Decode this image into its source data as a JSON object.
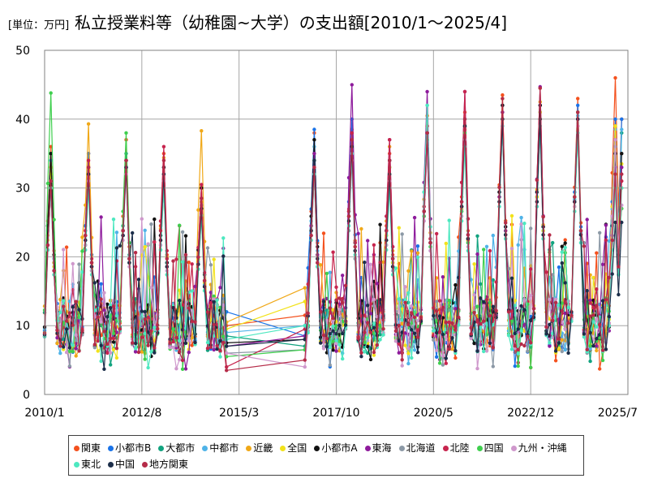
{
  "header": {
    "unit_label": "[単位：万円]",
    "title": "私立授業料等（幼稚園~大学）の支出額[2010/1～2025/4]"
  },
  "colors": {
    "gridline": "#a6a6a6",
    "plot_border": "#808080"
  },
  "chart_data": {
    "type": "line",
    "title": "私立授業料等（幼稚園~大学）の支出額[2010/1～2025/4]",
    "unit": "[単位：万円]",
    "xlabel": "",
    "ylabel": "",
    "ylim": [
      0,
      50
    ],
    "yticks": [
      0,
      10,
      20,
      30,
      40,
      50
    ],
    "grid": true,
    "legend_position": "bottom",
    "x_domain_months": [
      0,
      186
    ],
    "x_tick_labels": [
      {
        "label": "2010/1",
        "month_index": 0
      },
      {
        "label": "2012/8",
        "month_index": 31
      },
      {
        "label": "2015/3",
        "month_index": 62
      },
      {
        "label": "2017/10",
        "month_index": 93
      },
      {
        "label": "2020/5",
        "month_index": 124
      },
      {
        "label": "2022/12",
        "month_index": 155
      },
      {
        "label": "2025/7",
        "month_index": 186
      }
    ],
    "gap_months": {
      "last_before_gap": 58,
      "first_after_gap": 83
    },
    "series": [
      {
        "name": "関東",
        "color": "#f4511e",
        "peaks": [
          {
            "m": 2,
            "v": 36.0
          },
          {
            "m": 14,
            "v": 35.0
          },
          {
            "m": 26,
            "v": 37.0
          },
          {
            "m": 38,
            "v": 35.0
          },
          {
            "m": 50,
            "v": 30.0
          },
          {
            "m": 86,
            "v": 38.0
          },
          {
            "m": 98,
            "v": 38.5
          },
          {
            "m": 110,
            "v": 35.0
          },
          {
            "m": 122,
            "v": 39.0
          },
          {
            "m": 134,
            "v": 41.0
          },
          {
            "m": 146,
            "v": 43.5
          },
          {
            "m": 158,
            "v": 44.5
          },
          {
            "m": 170,
            "v": 43.0
          },
          {
            "m": 182,
            "v": 46.0
          }
        ],
        "after_gap_start": 11.5,
        "pre_gap_end": 10.0,
        "final": 40.0
      },
      {
        "name": "小都市B",
        "color": "#1a73e8",
        "peaks": [
          {
            "m": 2,
            "v": 33.0
          },
          {
            "m": 14,
            "v": 35.0
          },
          {
            "m": 26,
            "v": 34.0
          },
          {
            "m": 38,
            "v": 33.0
          },
          {
            "m": 50,
            "v": 28.0
          },
          {
            "m": 86,
            "v": 38.5
          },
          {
            "m": 98,
            "v": 40.0
          },
          {
            "m": 110,
            "v": 34.0
          },
          {
            "m": 122,
            "v": 38.0
          },
          {
            "m": 134,
            "v": 40.0
          },
          {
            "m": 146,
            "v": 42.0
          },
          {
            "m": 158,
            "v": 42.0
          },
          {
            "m": 170,
            "v": 42.0
          },
          {
            "m": 182,
            "v": 40.0
          }
        ],
        "after_gap_start": 8.5,
        "pre_gap_end": 12.0,
        "final": 40.0
      },
      {
        "name": "大都市",
        "color": "#12a37f",
        "peaks": [
          {
            "m": 2,
            "v": 35.0
          },
          {
            "m": 14,
            "v": 32.0
          },
          {
            "m": 26,
            "v": 35.0
          },
          {
            "m": 38,
            "v": 32.0
          },
          {
            "m": 50,
            "v": 27.0
          },
          {
            "m": 86,
            "v": 35.0
          },
          {
            "m": 98,
            "v": 37.0
          },
          {
            "m": 110,
            "v": 33.0
          },
          {
            "m": 122,
            "v": 37.0
          },
          {
            "m": 134,
            "v": 39.0
          },
          {
            "m": 146,
            "v": 41.0
          },
          {
            "m": 158,
            "v": 41.0
          },
          {
            "m": 170,
            "v": 41.0
          },
          {
            "m": 182,
            "v": 39.0
          }
        ],
        "after_gap_start": 7.0,
        "pre_gap_end": 8.5,
        "final": 38.0
      },
      {
        "name": "中都市",
        "color": "#4fb3e8",
        "peaks": [
          {
            "m": 2,
            "v": 34.0
          },
          {
            "m": 14,
            "v": 33.0
          },
          {
            "m": 26,
            "v": 34.0
          },
          {
            "m": 38,
            "v": 33.0
          },
          {
            "m": 50,
            "v": 27.5
          },
          {
            "m": 86,
            "v": 36.0
          },
          {
            "m": 98,
            "v": 37.0
          },
          {
            "m": 110,
            "v": 33.0
          },
          {
            "m": 122,
            "v": 42.0
          },
          {
            "m": 134,
            "v": 39.0
          },
          {
            "m": 146,
            "v": 40.0
          },
          {
            "m": 158,
            "v": 41.0
          },
          {
            "m": 170,
            "v": 40.5
          },
          {
            "m": 182,
            "v": 38.5
          }
        ],
        "after_gap_start": 10.0,
        "pre_gap_end": 9.0,
        "final": 38.5
      },
      {
        "name": "近畿",
        "color": "#f0a818",
        "peaks": [
          {
            "m": 2,
            "v": 33.0
          },
          {
            "m": 14,
            "v": 39.3
          },
          {
            "m": 26,
            "v": 34.0
          },
          {
            "m": 38,
            "v": 34.4
          },
          {
            "m": 50,
            "v": 38.3
          },
          {
            "m": 86,
            "v": 33.0
          },
          {
            "m": 98,
            "v": 37.0
          },
          {
            "m": 110,
            "v": 36.0
          },
          {
            "m": 122,
            "v": 40.5
          },
          {
            "m": 134,
            "v": 38.5
          },
          {
            "m": 146,
            "v": 43.0
          },
          {
            "m": 158,
            "v": 42.5
          },
          {
            "m": 170,
            "v": 39.0
          },
          {
            "m": 182,
            "v": 39.0
          }
        ],
        "after_gap_start": 15.5,
        "pre_gap_end": 10.5,
        "final": 30.0
      },
      {
        "name": "全国",
        "color": "#f2e21b",
        "peaks": [
          {
            "m": 2,
            "v": 32.0
          },
          {
            "m": 14,
            "v": 33.0
          },
          {
            "m": 26,
            "v": 33.0
          },
          {
            "m": 38,
            "v": 32.0
          },
          {
            "m": 50,
            "v": 28.0
          },
          {
            "m": 86,
            "v": 35.0
          },
          {
            "m": 98,
            "v": 37.0
          },
          {
            "m": 110,
            "v": 33.0
          },
          {
            "m": 122,
            "v": 38.0
          },
          {
            "m": 134,
            "v": 39.0
          },
          {
            "m": 146,
            "v": 41.0
          },
          {
            "m": 158,
            "v": 41.0
          },
          {
            "m": 170,
            "v": 41.0
          },
          {
            "m": 182,
            "v": 39.0
          }
        ],
        "after_gap_start": 13.5,
        "pre_gap_end": 9.5,
        "final": 33.5
      },
      {
        "name": "小都市A",
        "color": "#111111",
        "peaks": [
          {
            "m": 2,
            "v": 35.0
          },
          {
            "m": 14,
            "v": 32.0
          },
          {
            "m": 26,
            "v": 34.0
          },
          {
            "m": 38,
            "v": 33.0
          },
          {
            "m": 50,
            "v": 30.0
          },
          {
            "m": 86,
            "v": 37.0
          },
          {
            "m": 98,
            "v": 38.0
          },
          {
            "m": 110,
            "v": 34.0
          },
          {
            "m": 122,
            "v": 38.0
          },
          {
            "m": 134,
            "v": 39.0
          },
          {
            "m": 146,
            "v": 42.0
          },
          {
            "m": 158,
            "v": 42.0
          },
          {
            "m": 170,
            "v": 40.0
          },
          {
            "m": 182,
            "v": 35.0
          }
        ],
        "after_gap_start": 8.0,
        "pre_gap_end": 7.5,
        "final": 35.0
      },
      {
        "name": "東海",
        "color": "#8e1b9c",
        "peaks": [
          {
            "m": 2,
            "v": 31.0
          },
          {
            "m": 14,
            "v": 33.0
          },
          {
            "m": 26,
            "v": 33.0
          },
          {
            "m": 38,
            "v": 32.0
          },
          {
            "m": 50,
            "v": 28.5
          },
          {
            "m": 86,
            "v": 35.0
          },
          {
            "m": 98,
            "v": 45.0
          },
          {
            "m": 110,
            "v": 37.0
          },
          {
            "m": 122,
            "v": 44.0
          },
          {
            "m": 134,
            "v": 44.0
          },
          {
            "m": 146,
            "v": 41.0
          },
          {
            "m": 158,
            "v": 44.7
          },
          {
            "m": 170,
            "v": 41.0
          },
          {
            "m": 182,
            "v": 33.0
          }
        ],
        "after_gap_start": 8.5,
        "pre_gap_end": 7.0,
        "final": 33.0
      },
      {
        "name": "北海道",
        "color": "#8c99a6",
        "peaks": [
          {
            "m": 2,
            "v": 30.0
          },
          {
            "m": 14,
            "v": 31.0
          },
          {
            "m": 26,
            "v": 33.0
          },
          {
            "m": 38,
            "v": 31.0
          },
          {
            "m": 50,
            "v": 27.0
          },
          {
            "m": 86,
            "v": 33.0
          },
          {
            "m": 98,
            "v": 34.0
          },
          {
            "m": 110,
            "v": 31.0
          },
          {
            "m": 122,
            "v": 36.0
          },
          {
            "m": 134,
            "v": 38.0
          },
          {
            "m": 146,
            "v": 39.0
          },
          {
            "m": 158,
            "v": 40.0
          },
          {
            "m": 170,
            "v": 38.0
          },
          {
            "m": 182,
            "v": 36.0
          }
        ],
        "after_gap_start": 6.5,
        "pre_gap_end": 6.0,
        "final": 27.0
      },
      {
        "name": "北陸",
        "color": "#c7254e",
        "peaks": [
          {
            "m": 2,
            "v": 30.0
          },
          {
            "m": 14,
            "v": 34.0
          },
          {
            "m": 26,
            "v": 33.0
          },
          {
            "m": 38,
            "v": 36.0
          },
          {
            "m": 50,
            "v": 30.5
          },
          {
            "m": 86,
            "v": 32.0
          },
          {
            "m": 98,
            "v": 38.0
          },
          {
            "m": 110,
            "v": 37.0
          },
          {
            "m": 122,
            "v": 39.0
          },
          {
            "m": 134,
            "v": 44.0
          },
          {
            "m": 146,
            "v": 40.0
          },
          {
            "m": 158,
            "v": 39.0
          },
          {
            "m": 170,
            "v": 40.0
          },
          {
            "m": 182,
            "v": 37.0
          }
        ],
        "after_gap_start": 9.5,
        "pre_gap_end": 4.0,
        "final": 31.0
      },
      {
        "name": "四国",
        "color": "#3fcf4e",
        "peaks": [
          {
            "m": 2,
            "v": 43.8
          },
          {
            "m": 14,
            "v": 31.0
          },
          {
            "m": 26,
            "v": 38.0
          },
          {
            "m": 38,
            "v": 30.0
          },
          {
            "m": 50,
            "v": 26.0
          },
          {
            "m": 86,
            "v": 34.0
          },
          {
            "m": 98,
            "v": 36.0
          },
          {
            "m": 110,
            "v": 32.0
          },
          {
            "m": 122,
            "v": 37.0
          },
          {
            "m": 134,
            "v": 38.0
          },
          {
            "m": 146,
            "v": 40.0
          },
          {
            "m": 158,
            "v": 40.0
          },
          {
            "m": 170,
            "v": 41.0
          },
          {
            "m": 182,
            "v": 37.0
          }
        ],
        "after_gap_start": 6.5,
        "pre_gap_end": 5.5,
        "final": 27.0
      },
      {
        "name": "九州・沖縄",
        "color": "#cf98cc",
        "peaks": [
          {
            "m": 2,
            "v": 30.0
          },
          {
            "m": 14,
            "v": 31.0
          },
          {
            "m": 26,
            "v": 32.0
          },
          {
            "m": 38,
            "v": 31.0
          },
          {
            "m": 50,
            "v": 27.0
          },
          {
            "m": 86,
            "v": 33.0
          },
          {
            "m": 98,
            "v": 35.0
          },
          {
            "m": 110,
            "v": 31.0
          },
          {
            "m": 122,
            "v": 36.0
          },
          {
            "m": 134,
            "v": 37.0
          },
          {
            "m": 146,
            "v": 39.0
          },
          {
            "m": 158,
            "v": 39.0
          },
          {
            "m": 170,
            "v": 39.0
          },
          {
            "m": 182,
            "v": 37.0
          }
        ],
        "after_gap_start": 4.0,
        "pre_gap_end": 6.0,
        "final": 27.5
      },
      {
        "name": "東北",
        "color": "#4de8c0",
        "peaks": [
          {
            "m": 2,
            "v": 30.0
          },
          {
            "m": 14,
            "v": 30.0
          },
          {
            "m": 26,
            "v": 33.0
          },
          {
            "m": 38,
            "v": 30.0
          },
          {
            "m": 50,
            "v": 26.0
          },
          {
            "m": 86,
            "v": 32.0
          },
          {
            "m": 98,
            "v": 35.0
          },
          {
            "m": 110,
            "v": 30.0
          },
          {
            "m": 122,
            "v": 42.0
          },
          {
            "m": 134,
            "v": 36.0
          },
          {
            "m": 146,
            "v": 39.0
          },
          {
            "m": 158,
            "v": 39.0
          },
          {
            "m": 170,
            "v": 38.0
          },
          {
            "m": 182,
            "v": 30.0
          }
        ],
        "after_gap_start": 10.0,
        "pre_gap_end": 8.0,
        "final": 30.0
      },
      {
        "name": "中国",
        "color": "#1c2e4a",
        "peaks": [
          {
            "m": 2,
            "v": 31.0
          },
          {
            "m": 14,
            "v": 32.0
          },
          {
            "m": 26,
            "v": 33.0
          },
          {
            "m": 38,
            "v": 32.0
          },
          {
            "m": 50,
            "v": 27.0
          },
          {
            "m": 86,
            "v": 34.0
          },
          {
            "m": 98,
            "v": 36.0
          },
          {
            "m": 110,
            "v": 32.0
          },
          {
            "m": 122,
            "v": 38.0
          },
          {
            "m": 134,
            "v": 39.0
          },
          {
            "m": 146,
            "v": 40.0
          },
          {
            "m": 158,
            "v": 40.0
          },
          {
            "m": 170,
            "v": 40.0
          },
          {
            "m": 182,
            "v": 25.0
          }
        ],
        "after_gap_start": 8.0,
        "pre_gap_end": 7.0,
        "final": 25.0
      },
      {
        "name": "地方関東",
        "color": "#b52b48",
        "peaks": [
          {
            "m": 2,
            "v": 31.0
          },
          {
            "m": 14,
            "v": 33.0
          },
          {
            "m": 26,
            "v": 34.0
          },
          {
            "m": 38,
            "v": 34.0
          },
          {
            "m": 50,
            "v": 28.5
          },
          {
            "m": 86,
            "v": 33.0
          },
          {
            "m": 98,
            "v": 37.0
          },
          {
            "m": 110,
            "v": 34.0
          },
          {
            "m": 122,
            "v": 38.0
          },
          {
            "m": 134,
            "v": 40.0
          },
          {
            "m": 146,
            "v": 43.0
          },
          {
            "m": 158,
            "v": 44.5
          },
          {
            "m": 170,
            "v": 41.0
          },
          {
            "m": 182,
            "v": 32.0
          }
        ],
        "after_gap_start": 5.0,
        "pre_gap_end": 3.5,
        "final": 32.0
      }
    ]
  }
}
